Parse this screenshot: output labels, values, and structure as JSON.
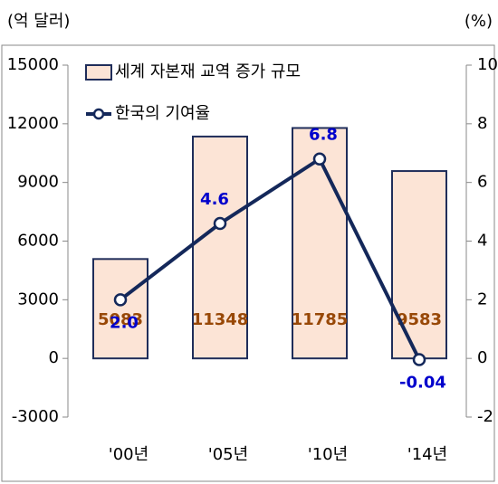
{
  "chart_data": {
    "type": "bar-line",
    "y_label": "(억 달러)",
    "y2_label": "(%)",
    "categories": [
      "'00년",
      "'05년",
      "'10년",
      "'14년"
    ],
    "series": [
      {
        "name": "세계 자본재 교역 증가 규모",
        "type": "bar",
        "color": "#fce4d6",
        "edge_color": "#1f2d5a",
        "label_color": "#984807",
        "values": [
          5083,
          11348,
          11785,
          9583
        ]
      },
      {
        "name": "한국의 기여율",
        "type": "line",
        "axis": "y2",
        "color": "#14285a",
        "label_color": "#0000cc",
        "values": [
          2.0,
          4.6,
          6.8,
          -0.04
        ],
        "value_labels": [
          "2.0",
          "4.6",
          "6.8",
          "-0.04"
        ]
      }
    ],
    "ylim": [
      -3000,
      15000
    ],
    "yticks": [
      -3000,
      0,
      3000,
      6000,
      9000,
      12000,
      15000
    ],
    "y2lim": [
      -2,
      10
    ],
    "y2ticks": [
      -2,
      0,
      2,
      4,
      6,
      8,
      10
    ]
  }
}
